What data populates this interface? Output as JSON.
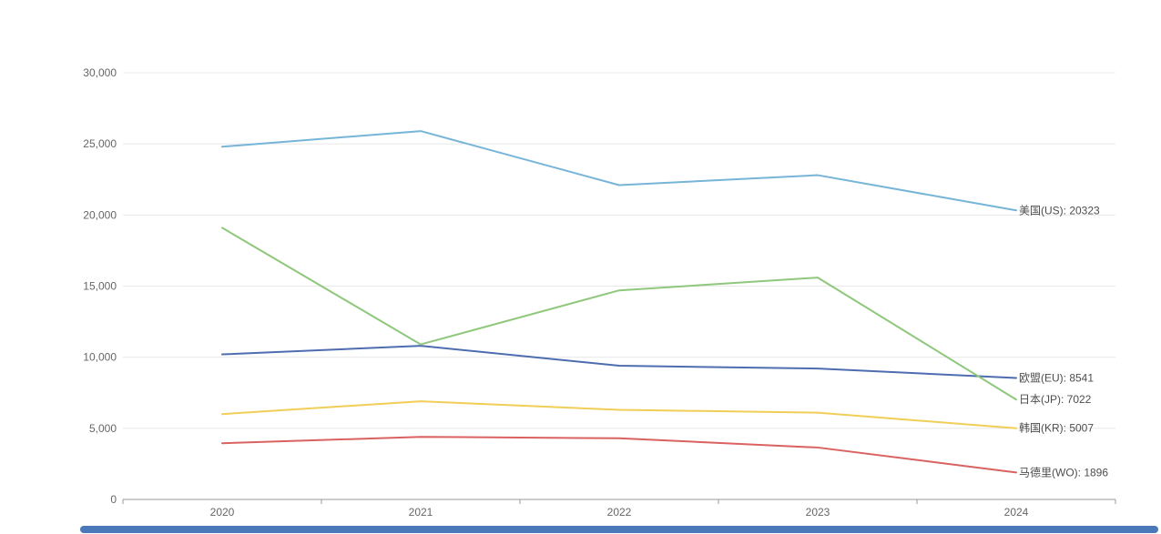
{
  "chart_data": {
    "type": "line",
    "title": "",
    "xlabel": "",
    "ylabel": "",
    "categories": [
      "2020",
      "2021",
      "2022",
      "2023",
      "2024"
    ],
    "series": [
      {
        "name": "美国(US)",
        "color": "#76b4d8",
        "values": [
          24800,
          25900,
          22100,
          22800,
          20323
        ],
        "end_label": "美国(US): 20323"
      },
      {
        "name": "欧盟(EU)",
        "color": "#4e6cb0",
        "values": [
          10200,
          10800,
          9400,
          9200,
          8541
        ],
        "end_label": "欧盟(EU): 8541"
      },
      {
        "name": "日本(JP)",
        "color": "#8fc87c",
        "values": [
          19100,
          10900,
          14700,
          15600,
          7022
        ],
        "end_label": "日本(JP): 7022"
      },
      {
        "name": "韩国(KR)",
        "color": "#f0ce58",
        "values": [
          6000,
          6900,
          6300,
          6100,
          5007
        ],
        "end_label": "韩国(KR): 5007"
      },
      {
        "name": "马德里(WO)",
        "color": "#da6260",
        "values": [
          3950,
          4400,
          4300,
          3650,
          1896
        ],
        "end_label": "马德里(WO): 1896"
      }
    ],
    "ylim": [
      0,
      30000
    ],
    "y_ticks": [
      {
        "value": 0,
        "label": "0"
      },
      {
        "value": 5000,
        "label": "5,000"
      },
      {
        "value": 10000,
        "label": "10,000"
      },
      {
        "value": 15000,
        "label": "15,000"
      },
      {
        "value": 20000,
        "label": "20,000"
      },
      {
        "value": 25000,
        "label": "25,000"
      },
      {
        "value": 30000,
        "label": "30,000"
      }
    ],
    "grid": true,
    "legend_position": "line-end-right"
  },
  "style_colors": {
    "gridline": "#e8e8e8",
    "axis_line": "#999999",
    "tick_mark": "#999999",
    "axis_text": "#666666",
    "end_label_text": "#4d4d4d"
  },
  "scrollbar": {
    "color": "#4a78b8"
  }
}
